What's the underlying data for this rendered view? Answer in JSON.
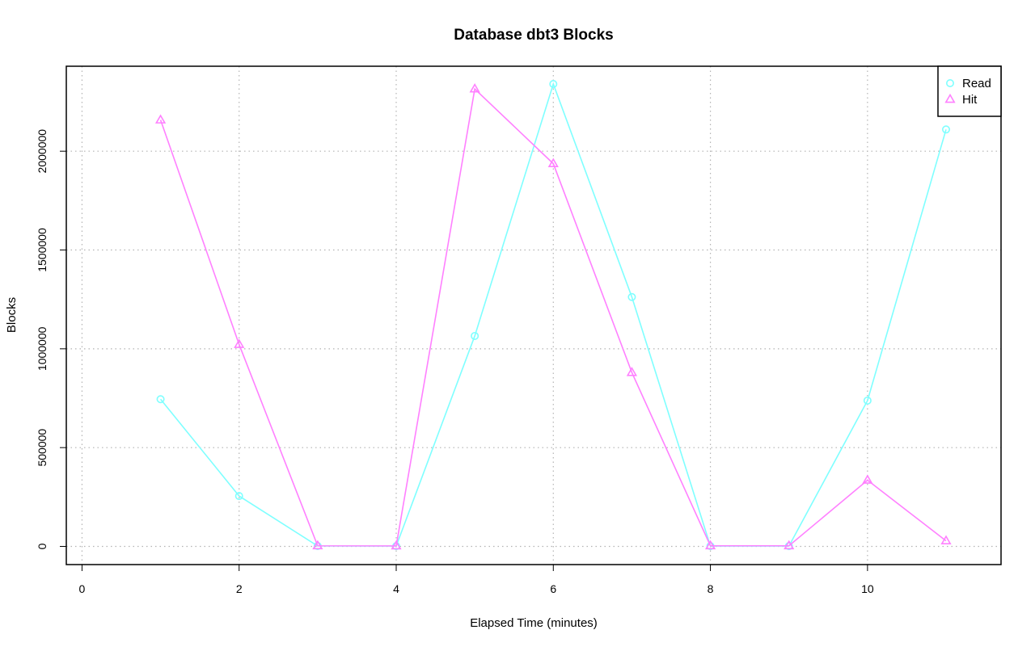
{
  "chart_data": {
    "type": "line",
    "title": "Database dbt3 Blocks",
    "xlabel": "Elapsed Time (minutes)",
    "ylabel": "Blocks",
    "xlim": [
      -0.2,
      11.7
    ],
    "ylim": [
      -92000,
      2430000
    ],
    "x_ticks": [
      0,
      2,
      4,
      6,
      8,
      10
    ],
    "y_ticks": [
      0,
      500000,
      1000000,
      1500000,
      2000000
    ],
    "grid": true,
    "legend_position": "top-right",
    "x": [
      1,
      2,
      3,
      4,
      5,
      6,
      7,
      8,
      9,
      10,
      11
    ],
    "series": [
      {
        "name": "Read",
        "marker": "circle",
        "color": "#7fffff",
        "values": [
          745000,
          255000,
          2000,
          1500,
          1065000,
          2340000,
          1262000,
          1500,
          1500,
          738000,
          2110000
        ]
      },
      {
        "name": "Hit",
        "marker": "triangle",
        "color": "#ff80ff",
        "values": [
          2158000,
          1022000,
          3000,
          2500,
          2315000,
          1937000,
          880000,
          3000,
          3000,
          335000,
          28000
        ]
      }
    ]
  }
}
